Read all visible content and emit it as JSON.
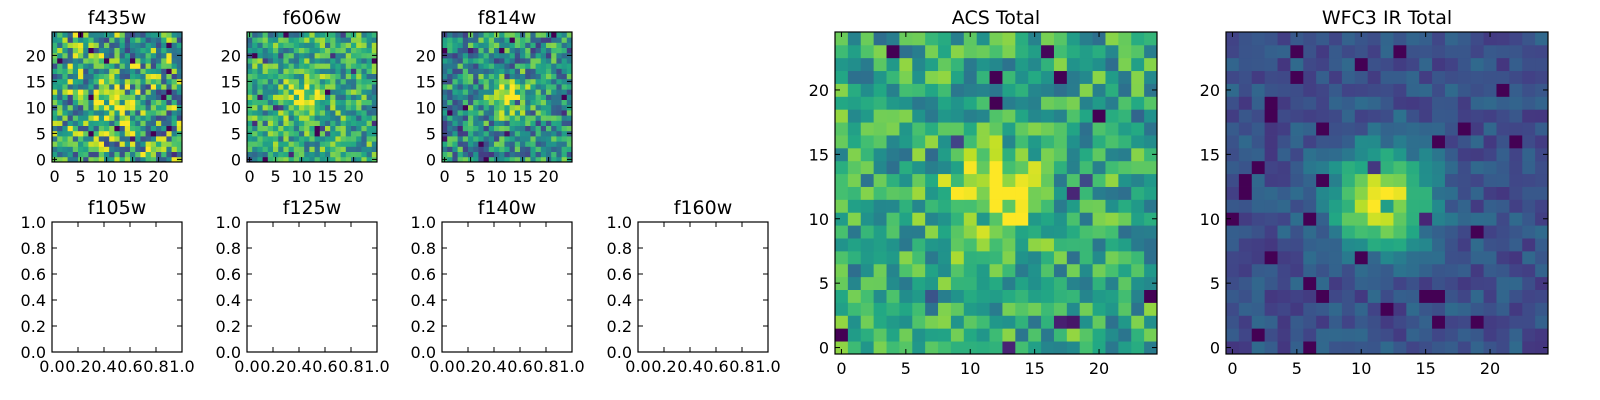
{
  "chart_data": [
    {
      "id": "f435w",
      "type": "heatmap",
      "title": "f435w",
      "grid_size": 25,
      "xlim": [
        -0.5,
        24.5
      ],
      "ylim": [
        -0.5,
        24.5
      ],
      "xticks": [
        0,
        5,
        10,
        15,
        20
      ],
      "yticks": [
        0,
        5,
        10,
        15,
        20
      ],
      "colormap": "viridis",
      "peak_center": [
        11,
        11
      ],
      "peak_strength": 0.2,
      "background_level": 0.6,
      "noise_level": 0.5
    },
    {
      "id": "f606w",
      "type": "heatmap",
      "title": "f606w",
      "grid_size": 25,
      "xlim": [
        -0.5,
        24.5
      ],
      "ylim": [
        -0.5,
        24.5
      ],
      "xticks": [
        0,
        5,
        10,
        15,
        20
      ],
      "yticks": [
        0,
        5,
        10,
        15,
        20
      ],
      "colormap": "viridis",
      "peak_center": [
        11,
        12
      ],
      "peak_strength": 0.35,
      "background_level": 0.6,
      "noise_level": 0.35
    },
    {
      "id": "f814w",
      "type": "heatmap",
      "title": "f814w",
      "grid_size": 25,
      "xlim": [
        -0.5,
        24.5
      ],
      "ylim": [
        -0.5,
        24.5
      ],
      "xticks": [
        0,
        5,
        10,
        15,
        20
      ],
      "yticks": [
        0,
        5,
        10,
        15,
        20
      ],
      "colormap": "viridis",
      "peak_center": [
        12,
        12
      ],
      "peak_strength": 0.45,
      "background_level": 0.5,
      "noise_level": 0.4
    },
    {
      "id": "f105w",
      "type": "empty",
      "title": "f105w",
      "xlim": [
        0,
        1
      ],
      "ylim": [
        0,
        1
      ],
      "xticks": [
        0.0,
        0.2,
        0.4,
        0.6,
        0.8,
        1.0
      ],
      "yticks": [
        0.0,
        0.2,
        0.4,
        0.6,
        0.8,
        1.0
      ]
    },
    {
      "id": "f125w",
      "type": "empty",
      "title": "f125w",
      "xlim": [
        0,
        1
      ],
      "ylim": [
        0,
        1
      ],
      "xticks": [
        0.0,
        0.2,
        0.4,
        0.6,
        0.8,
        1.0
      ],
      "yticks": [
        0.0,
        0.2,
        0.4,
        0.6,
        0.8,
        1.0
      ]
    },
    {
      "id": "f140w",
      "type": "empty",
      "title": "f140w",
      "xlim": [
        0,
        1
      ],
      "ylim": [
        0,
        1
      ],
      "xticks": [
        0.0,
        0.2,
        0.4,
        0.6,
        0.8,
        1.0
      ],
      "yticks": [
        0.0,
        0.2,
        0.4,
        0.6,
        0.8,
        1.0
      ]
    },
    {
      "id": "f160w",
      "type": "empty",
      "title": "f160w",
      "xlim": [
        0,
        1
      ],
      "ylim": [
        0,
        1
      ],
      "xticks": [
        0.0,
        0.2,
        0.4,
        0.6,
        0.8,
        1.0
      ],
      "yticks": [
        0.0,
        0.2,
        0.4,
        0.6,
        0.8,
        1.0
      ]
    },
    {
      "id": "acs-total",
      "type": "heatmap",
      "title": "ACS Total",
      "grid_size": 25,
      "xlim": [
        -0.5,
        24.5
      ],
      "ylim": [
        -0.5,
        24.5
      ],
      "xticks": [
        0,
        5,
        10,
        15,
        20
      ],
      "yticks": [
        0,
        5,
        10,
        15,
        20
      ],
      "colormap": "viridis",
      "peak_center": [
        11.5,
        11.5
      ],
      "peak_strength": 0.4,
      "background_level": 0.6,
      "noise_level": 0.3
    },
    {
      "id": "wfc3-ir-total",
      "type": "heatmap",
      "title": "WFC3 IR Total",
      "grid_size": 25,
      "xlim": [
        -0.5,
        24.5
      ],
      "ylim": [
        -0.5,
        24.5
      ],
      "xticks": [
        0,
        5,
        10,
        15,
        20
      ],
      "yticks": [
        0,
        5,
        10,
        15,
        20
      ],
      "colormap": "viridis",
      "peak_center": [
        11.5,
        11.5
      ],
      "peak_strength": 0.75,
      "background_level": 0.25,
      "noise_level": 0.12
    }
  ],
  "colors": {
    "viridis": [
      "#440154",
      "#482475",
      "#414487",
      "#355f8d",
      "#2a788e",
      "#21918c",
      "#22a884",
      "#44bf70",
      "#7ad151",
      "#bddf26",
      "#fde725"
    ],
    "axis": "#000000",
    "background": "#ffffff"
  }
}
